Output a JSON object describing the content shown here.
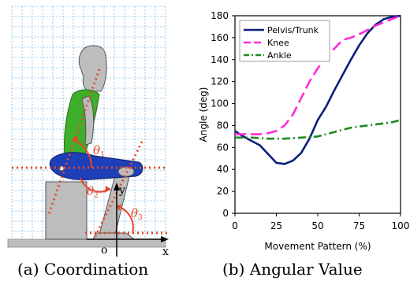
{
  "captions": {
    "a": "(a) Coordination",
    "b": "(b) Angular Value"
  },
  "diagram": {
    "theta_labels": [
      {
        "symbol": "θ",
        "sub": "1"
      },
      {
        "symbol": "θ",
        "sub": "2"
      },
      {
        "symbol": "θ",
        "sub": "3"
      }
    ],
    "axis_labels": {
      "x": "x",
      "y": "y",
      "origin": "o"
    },
    "colors": {
      "grid": "#4da6e6",
      "guide_lines": "#e8472b",
      "trunk": "#3fae2a",
      "pelvis": "#1f3fb8",
      "body_gray": "#bdbdbd"
    }
  },
  "chart_data": {
    "type": "line",
    "xlabel": "Movement Pattern (%)",
    "ylabel": "Angle (deg)",
    "xlim": [
      0,
      100
    ],
    "ylim": [
      0,
      180
    ],
    "xticks": [
      0,
      25,
      50,
      75,
      100
    ],
    "yticks": [
      0,
      20,
      40,
      60,
      80,
      100,
      120,
      140,
      160,
      180
    ],
    "legend_position": "top-left",
    "grid": false,
    "series": [
      {
        "name": "Pelvis/Trunk",
        "color": "#0a1f7a",
        "dash": "solid",
        "points": [
          [
            0,
            75
          ],
          [
            5,
            70
          ],
          [
            10,
            66
          ],
          [
            15,
            62
          ],
          [
            20,
            54
          ],
          [
            25,
            46
          ],
          [
            30,
            45
          ],
          [
            35,
            48
          ],
          [
            40,
            55
          ],
          [
            45,
            68
          ],
          [
            50,
            85
          ],
          [
            55,
            97
          ],
          [
            60,
            112
          ],
          [
            65,
            126
          ],
          [
            70,
            140
          ],
          [
            75,
            153
          ],
          [
            80,
            164
          ],
          [
            85,
            172
          ],
          [
            90,
            177
          ],
          [
            95,
            179
          ],
          [
            100,
            180
          ]
        ]
      },
      {
        "name": "Knee",
        "color": "#ff2bd6",
        "dash": "long",
        "points": [
          [
            0,
            72
          ],
          [
            5,
            72
          ],
          [
            10,
            72
          ],
          [
            15,
            72
          ],
          [
            20,
            73
          ],
          [
            25,
            75
          ],
          [
            30,
            80
          ],
          [
            35,
            90
          ],
          [
            40,
            105
          ],
          [
            45,
            120
          ],
          [
            50,
            132
          ],
          [
            55,
            143
          ],
          [
            60,
            150
          ],
          [
            65,
            158
          ],
          [
            70,
            160
          ],
          [
            75,
            163
          ],
          [
            80,
            167
          ],
          [
            85,
            171
          ],
          [
            90,
            174
          ],
          [
            95,
            177
          ],
          [
            100,
            180
          ]
        ]
      },
      {
        "name": "Ankle",
        "color": "#1c8a1c",
        "dash": "dashdot",
        "points": [
          [
            0,
            69
          ],
          [
            10,
            69
          ],
          [
            20,
            68
          ],
          [
            30,
            68
          ],
          [
            40,
            69
          ],
          [
            50,
            70
          ],
          [
            55,
            72
          ],
          [
            60,
            74
          ],
          [
            65,
            76
          ],
          [
            70,
            78
          ],
          [
            75,
            79
          ],
          [
            80,
            80
          ],
          [
            85,
            81
          ],
          [
            90,
            82
          ],
          [
            95,
            83
          ],
          [
            100,
            85
          ]
        ]
      }
    ]
  }
}
